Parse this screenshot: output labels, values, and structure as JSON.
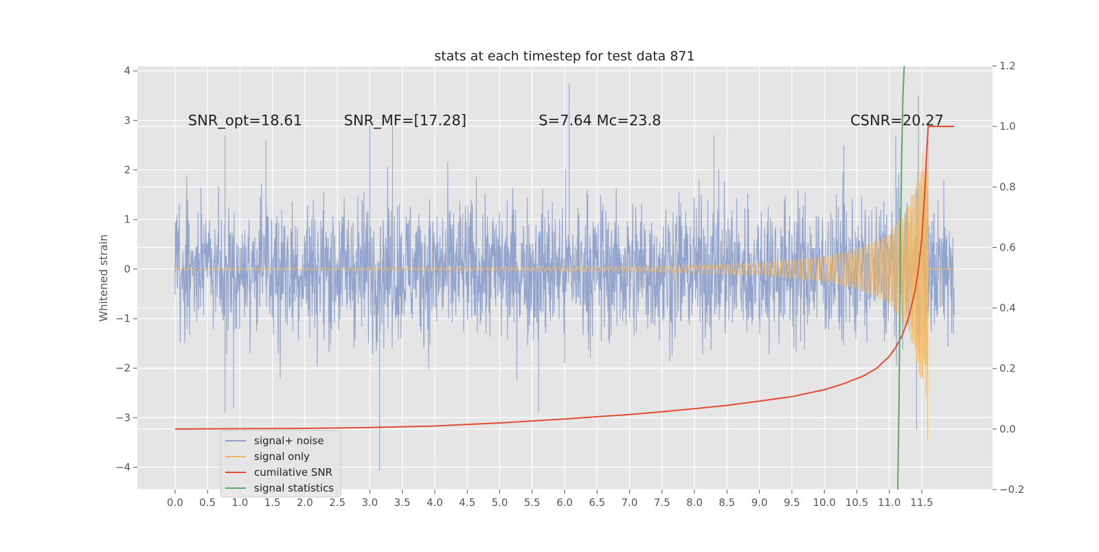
{
  "chart_data": {
    "type": "line",
    "title": "stats at each timestep for test data 871",
    "ylabel": "Whitened strain",
    "xlim": [
      -0.58,
      12.59
    ],
    "ylim": [
      -4.45,
      4.1
    ],
    "y2lim": [
      -0.2,
      1.2
    ],
    "x_ticks": [
      0.0,
      0.5,
      1.0,
      1.5,
      2.0,
      2.5,
      3.0,
      3.5,
      4.0,
      4.5,
      5.0,
      5.5,
      6.0,
      6.5,
      7.0,
      7.5,
      8.0,
      8.5,
      9.0,
      9.5,
      10.0,
      10.5,
      11.0,
      11.5
    ],
    "x_tick_labels": [
      "0.0",
      "0.5",
      "1.0",
      "1.5",
      "2.0",
      "2.5",
      "3.0",
      "3.5",
      "4.0",
      "4.5",
      "5.0",
      "5.5",
      "6.0",
      "6.5",
      "7.0",
      "7.5",
      "8.0",
      "8.5",
      "9.0",
      "9.5",
      "10.0",
      "10.5",
      "11.0",
      "11.5"
    ],
    "y_ticks": [
      -4,
      -3,
      -2,
      -1,
      0,
      1,
      2,
      3,
      4
    ],
    "y_tick_labels": [
      "−4",
      "−3",
      "−2",
      "−1",
      "0",
      "1",
      "2",
      "3",
      "4"
    ],
    "y2_ticks": [
      -0.2,
      0.0,
      0.2,
      0.4,
      0.6,
      0.8,
      1.0,
      1.2
    ],
    "y2_tick_labels": [
      "−0.2",
      "0.0",
      "0.2",
      "0.4",
      "0.6",
      "0.8",
      "1.0",
      "1.2"
    ],
    "grid": true,
    "legend_position": "lower-left",
    "annotations": [
      {
        "id": "snr-opt",
        "text": "SNR_opt=18.61",
        "x": 0.2,
        "y": 3.0
      },
      {
        "id": "snr-mf",
        "text": "SNR_MF=[17.28]",
        "x": 2.6,
        "y": 3.0
      },
      {
        "id": "s-mc",
        "text": "S=7.64   Mc=23.8",
        "x": 5.6,
        "y": 3.0
      },
      {
        "id": "csnr",
        "text": "CSNR=20.27",
        "x": 10.4,
        "y": 3.0
      }
    ],
    "series": [
      {
        "name": "signal+ noise",
        "axis": "left",
        "color": "#8da0cb",
        "x_range": [
          0.0,
          12.0
        ],
        "amplitude_envelope": [
          1.7,
          -1.7
        ],
        "peaks": [
          {
            "x": 0.77,
            "y": 2.7
          },
          {
            "x": 0.77,
            "y": -2.9
          },
          {
            "x": 0.9,
            "y": -2.8
          },
          {
            "x": 1.4,
            "y": 2.6
          },
          {
            "x": 3.0,
            "y": 2.9
          },
          {
            "x": 3.15,
            "y": -4.07
          },
          {
            "x": 3.35,
            "y": 2.9
          },
          {
            "x": 6.07,
            "y": 3.75
          },
          {
            "x": 6.0,
            "y": -1.9
          },
          {
            "x": 5.6,
            "y": -2.9
          },
          {
            "x": 8.3,
            "y": 2.7
          },
          {
            "x": 10.3,
            "y": 2.5
          },
          {
            "x": 11.1,
            "y": 2.7
          },
          {
            "x": 11.45,
            "y": 3.5
          },
          {
            "x": 11.42,
            "y": -3.25
          }
        ]
      },
      {
        "name": "signal only",
        "axis": "left",
        "color": "#f2b760",
        "x_range": [
          0.0,
          11.6
        ],
        "envelope": [
          [
            0.0,
            0.02
          ],
          [
            7.0,
            0.05
          ],
          [
            9.0,
            0.12
          ],
          [
            10.0,
            0.25
          ],
          [
            10.5,
            0.4
          ],
          [
            11.0,
            0.7
          ],
          [
            11.3,
            1.3
          ],
          [
            11.5,
            2.3
          ],
          [
            11.58,
            2.6
          ],
          [
            11.6,
            0.0
          ]
        ],
        "extremes": [
          {
            "x": 11.6,
            "y": 2.56
          },
          {
            "x": 11.59,
            "y": -3.45
          }
        ]
      },
      {
        "name": "cumilative SNR",
        "axis": "right",
        "color": "#e24a33",
        "x": [
          0.0,
          1.0,
          2.0,
          3.0,
          4.0,
          5.0,
          6.0,
          7.0,
          7.5,
          8.0,
          8.5,
          9.0,
          9.5,
          10.0,
          10.3,
          10.6,
          10.8,
          11.0,
          11.1,
          11.2,
          11.3,
          11.4,
          11.45,
          11.5,
          11.55,
          11.58,
          11.6,
          12.0
        ],
        "values": [
          0.0,
          0.001,
          0.002,
          0.005,
          0.01,
          0.02,
          0.033,
          0.048,
          0.057,
          0.067,
          0.078,
          0.092,
          0.107,
          0.13,
          0.15,
          0.175,
          0.2,
          0.24,
          0.27,
          0.31,
          0.37,
          0.46,
          0.53,
          0.63,
          0.8,
          0.93,
          1.0,
          1.0
        ]
      },
      {
        "name": "signal statistics",
        "axis": "right",
        "color": "#55a868",
        "x": [
          11.13,
          11.15,
          11.17,
          11.19,
          11.21,
          11.23
        ],
        "values": [
          -0.2,
          0.1,
          0.6,
          0.9,
          1.1,
          1.2
        ]
      }
    ]
  }
}
